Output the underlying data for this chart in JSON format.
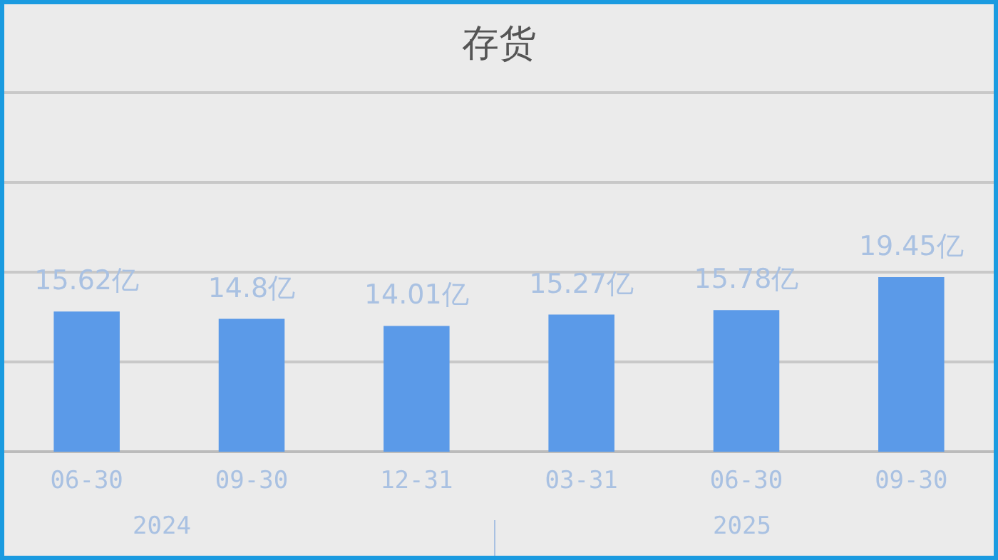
{
  "chart_data": {
    "type": "bar",
    "title": "存货",
    "categories": [
      "06-30",
      "09-30",
      "12-31",
      "03-31",
      "06-30",
      "09-30"
    ],
    "values": [
      15.62,
      14.8,
      14.01,
      15.27,
      15.78,
      19.45
    ],
    "value_labels": [
      "15.62亿",
      "14.8亿",
      "14.01亿",
      "15.27亿",
      "15.78亿",
      "19.45亿"
    ],
    "color": "#5b9ae8",
    "ylim": [
      0,
      40
    ],
    "yticks": [
      {
        "value": 0,
        "label": null
      },
      {
        "value": 10,
        "label": null
      },
      {
        "value": 20,
        "label": null
      },
      {
        "value": 30,
        "label": null
      },
      {
        "value": 40,
        "label": null
      }
    ],
    "tick_labels": "x",
    "grid": "y",
    "annotations": [
      "2024",
      "2025"
    ]
  }
}
